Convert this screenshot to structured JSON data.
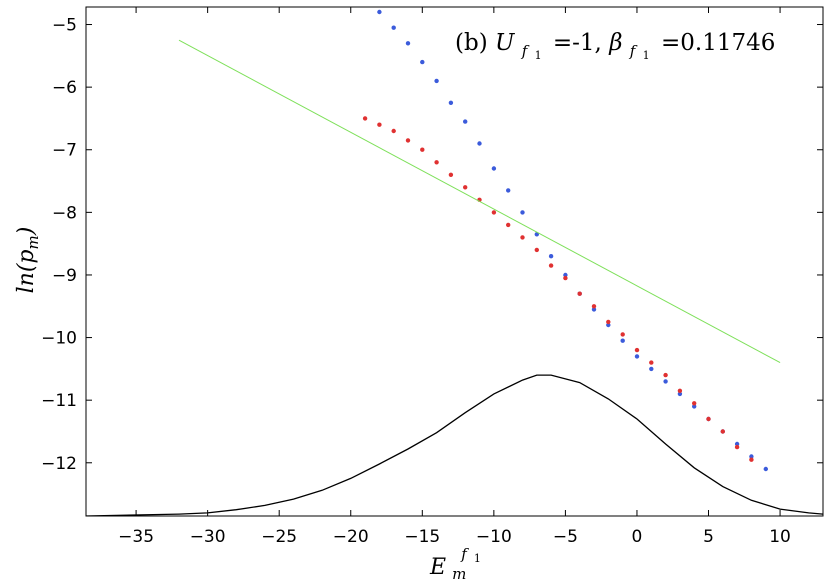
{
  "chart_data": {
    "type": "scatter",
    "annotation": {
      "prefix": "(b) ",
      "u_symbol": "U",
      "u_value": "=-1, ",
      "beta_symbol": "β",
      "beta_value": "=0.11746",
      "sub_symbol": "f",
      "sub_index": "1"
    },
    "xlabel": {
      "symbol": "E",
      "sub": "m",
      "sup_symbol": "f",
      "sup_index": "1"
    },
    "ylabel": {
      "prefix": "ln(",
      "symbol": "p",
      "sub": "m",
      "suffix": ")"
    },
    "xlim": [
      -38.5,
      13
    ],
    "ylim": [
      -12.85,
      -4.72
    ],
    "xticks": [
      -35,
      -30,
      -25,
      -20,
      -15,
      -10,
      -5,
      0,
      5,
      10
    ],
    "yticks": [
      -5,
      -6,
      -7,
      -8,
      -9,
      -10,
      -11,
      -12
    ],
    "xtick_labels": [
      "−35",
      "−30",
      "−25",
      "−20",
      "−15",
      "−10",
      "−5",
      "0",
      "5",
      "10"
    ],
    "ytick_labels": [
      "−5",
      "−6",
      "−7",
      "−8",
      "−9",
      "−10",
      "−11",
      "−12"
    ],
    "grid": false,
    "series": [
      {
        "kind": "scatter",
        "color": "#3b5bdb",
        "points": [
          [
            -18,
            -4.8
          ],
          [
            -17,
            -5.05
          ],
          [
            -16,
            -5.3
          ],
          [
            -15,
            -5.6
          ],
          [
            -14,
            -5.9
          ],
          [
            -13,
            -6.25
          ],
          [
            -12,
            -6.55
          ],
          [
            -11,
            -6.9
          ],
          [
            -10,
            -7.3
          ],
          [
            -9,
            -7.65
          ],
          [
            -8,
            -8.0
          ],
          [
            -7,
            -8.35
          ],
          [
            -6,
            -8.7
          ],
          [
            -5,
            -9.0
          ],
          [
            -4,
            -9.3
          ],
          [
            -3,
            -9.55
          ],
          [
            -2,
            -9.8
          ],
          [
            -1,
            -10.05
          ],
          [
            0,
            -10.3
          ],
          [
            1,
            -10.5
          ],
          [
            2,
            -10.7
          ],
          [
            3,
            -10.9
          ],
          [
            4,
            -11.1
          ],
          [
            5,
            -11.3
          ],
          [
            6,
            -11.5
          ],
          [
            7,
            -11.7
          ],
          [
            8,
            -11.9
          ],
          [
            9,
            -12.1
          ]
        ]
      },
      {
        "kind": "scatter",
        "color": "#e03131",
        "points": [
          [
            -19,
            -6.5
          ],
          [
            -18,
            -6.6
          ],
          [
            -17,
            -6.7
          ],
          [
            -16,
            -6.85
          ],
          [
            -15,
            -7.0
          ],
          [
            -14,
            -7.2
          ],
          [
            -13,
            -7.4
          ],
          [
            -12,
            -7.6
          ],
          [
            -11,
            -7.8
          ],
          [
            -10,
            -8.0
          ],
          [
            -9,
            -8.2
          ],
          [
            -8,
            -8.4
          ],
          [
            -7,
            -8.6
          ],
          [
            -6,
            -8.85
          ],
          [
            -5,
            -9.05
          ],
          [
            -4,
            -9.3
          ],
          [
            -3,
            -9.5
          ],
          [
            -2,
            -9.75
          ],
          [
            -1,
            -9.95
          ],
          [
            0,
            -10.2
          ],
          [
            1,
            -10.4
          ],
          [
            2,
            -10.6
          ],
          [
            3,
            -10.85
          ],
          [
            4,
            -11.05
          ],
          [
            5,
            -11.3
          ],
          [
            6,
            -11.5
          ],
          [
            7,
            -11.75
          ],
          [
            8,
            -11.95
          ]
        ]
      },
      {
        "kind": "line",
        "color": "#7ee05a",
        "points": [
          [
            -32,
            -5.25
          ],
          [
            10,
            -10.4
          ]
        ]
      },
      {
        "kind": "line",
        "color": "#000000",
        "points": [
          [
            -38.5,
            -12.85
          ],
          [
            -32,
            -12.82
          ],
          [
            -30,
            -12.8
          ],
          [
            -28,
            -12.75
          ],
          [
            -26,
            -12.68
          ],
          [
            -24,
            -12.58
          ],
          [
            -22,
            -12.44
          ],
          [
            -20,
            -12.25
          ],
          [
            -18,
            -12.02
          ],
          [
            -16,
            -11.78
          ],
          [
            -14,
            -11.52
          ],
          [
            -12,
            -11.2
          ],
          [
            -10,
            -10.9
          ],
          [
            -8,
            -10.68
          ],
          [
            -7,
            -10.6
          ],
          [
            -6,
            -10.6
          ],
          [
            -4,
            -10.72
          ],
          [
            -2,
            -10.98
          ],
          [
            0,
            -11.3
          ],
          [
            2,
            -11.7
          ],
          [
            4,
            -12.08
          ],
          [
            6,
            -12.38
          ],
          [
            8,
            -12.6
          ],
          [
            10,
            -12.74
          ],
          [
            12,
            -12.8
          ],
          [
            13,
            -12.82
          ]
        ]
      }
    ]
  }
}
